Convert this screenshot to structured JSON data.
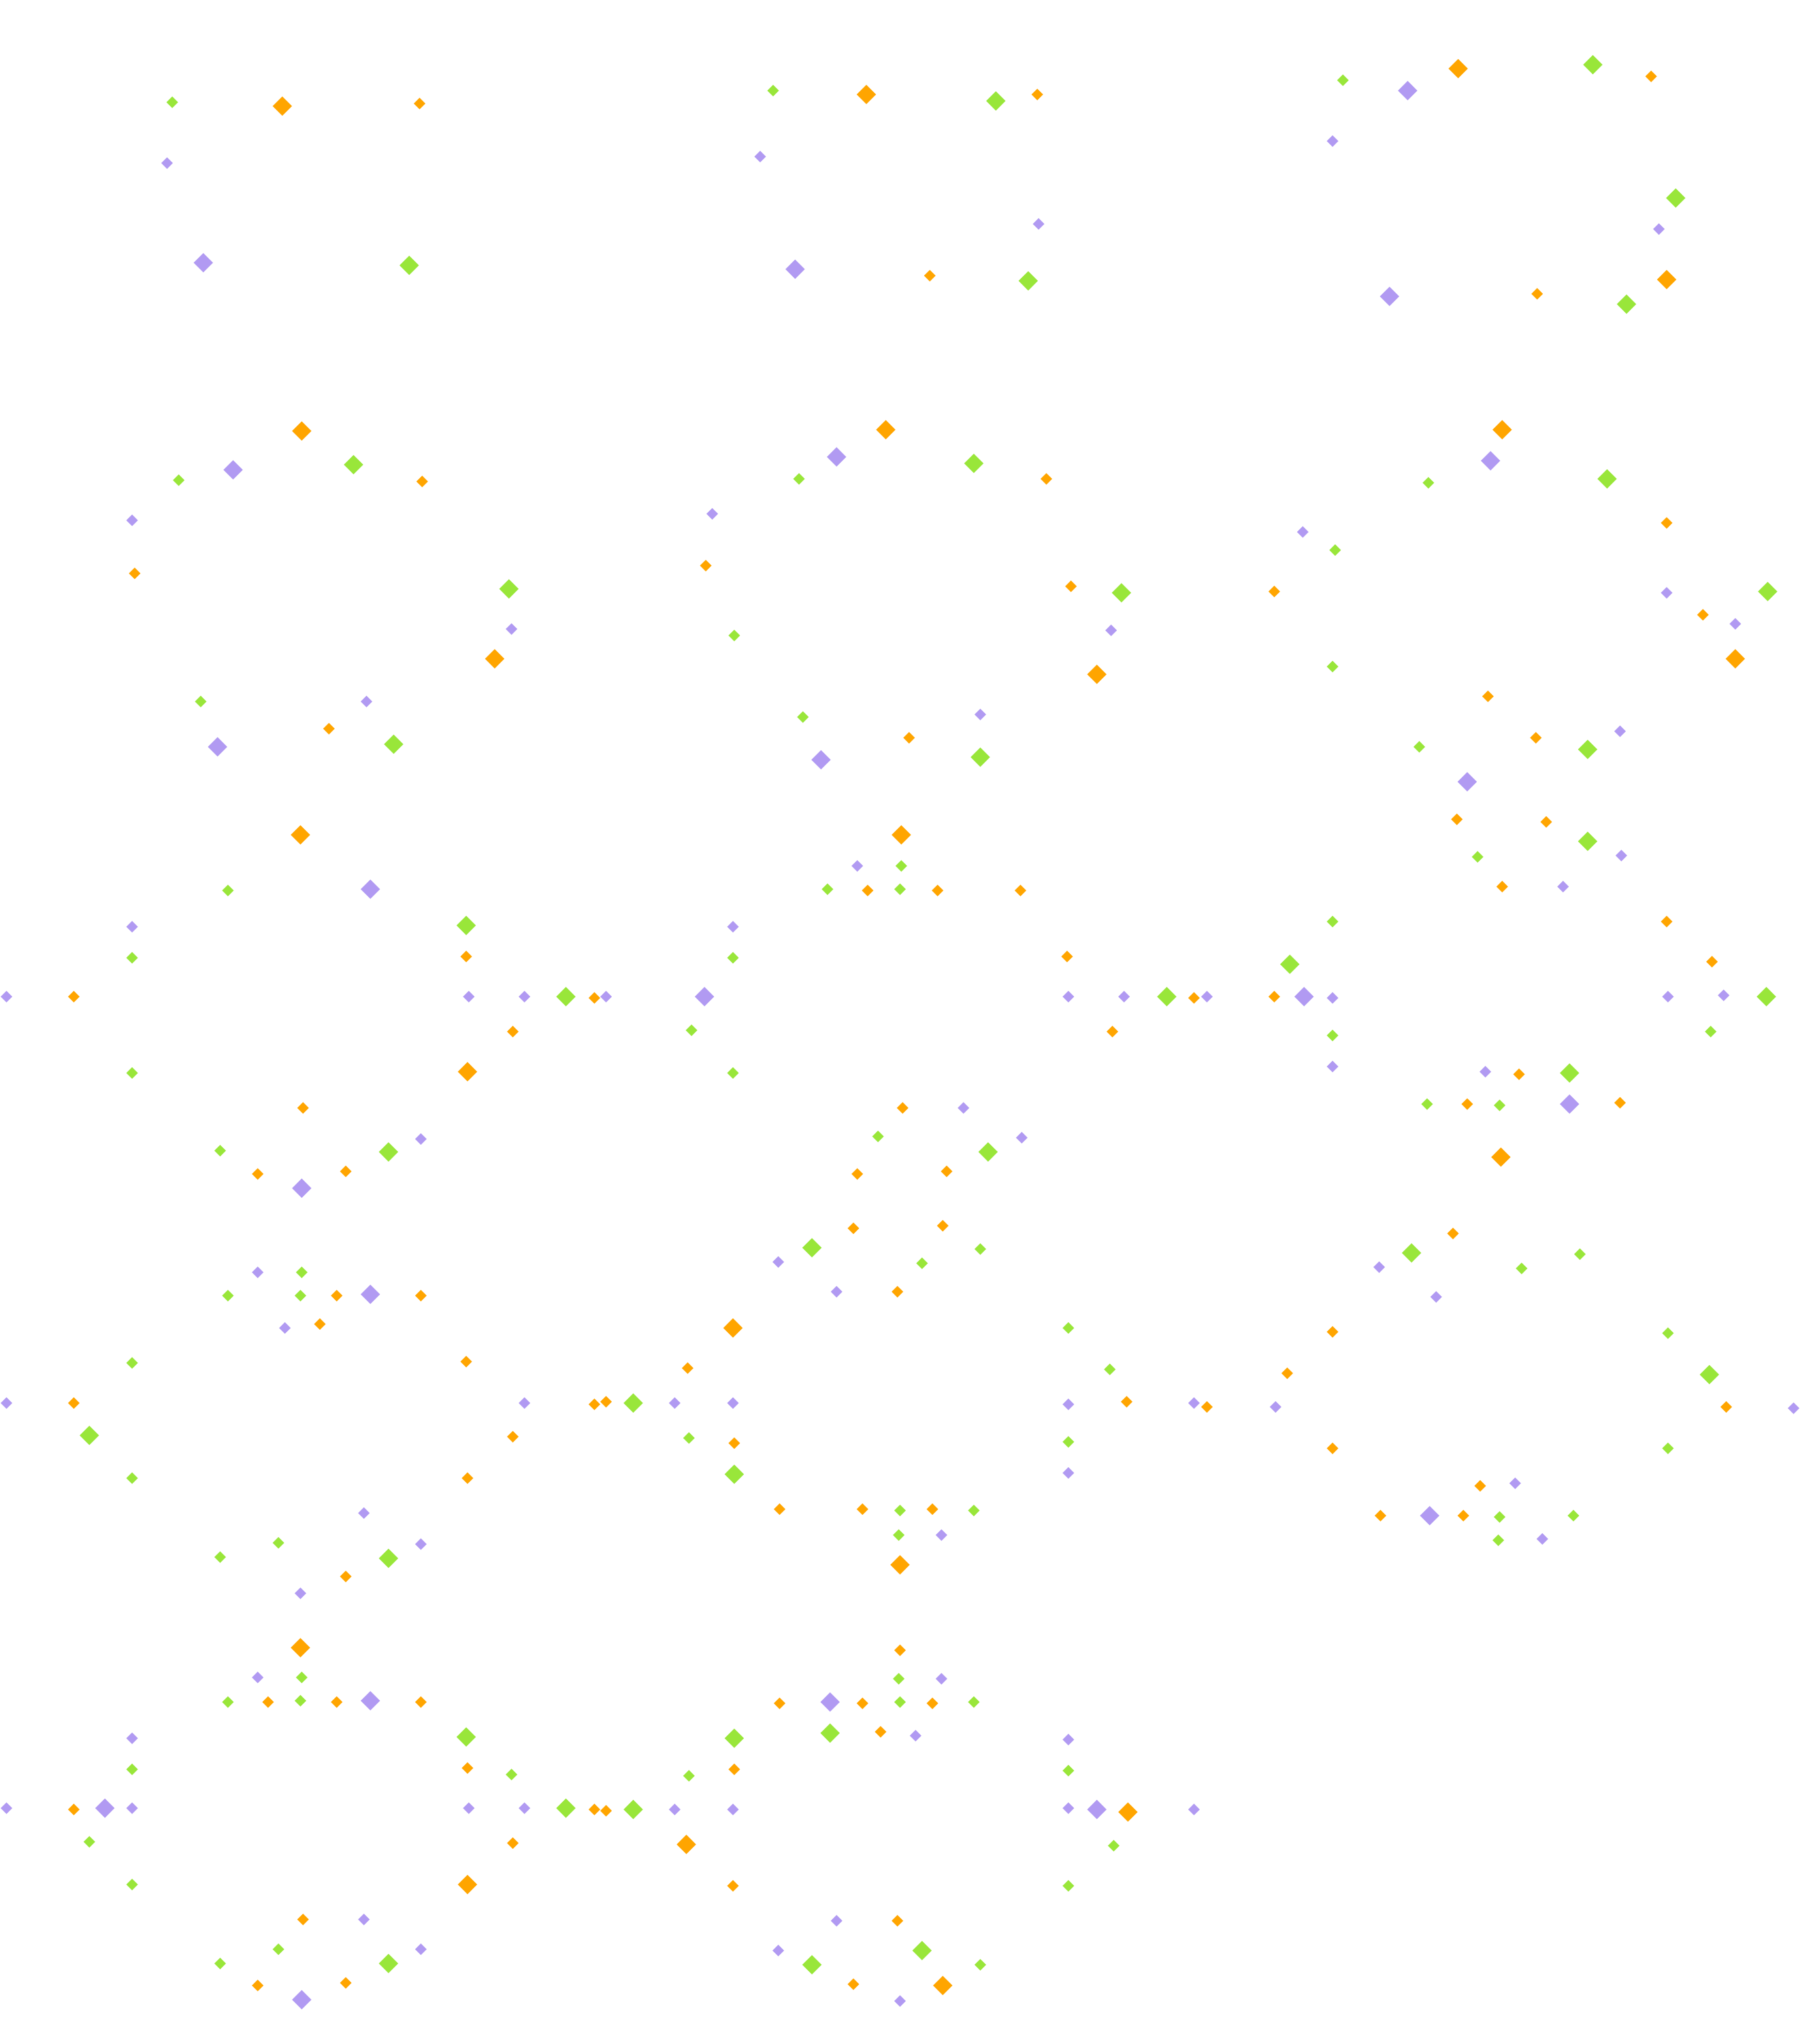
{
  "pattern": {
    "description_visible_text": "",
    "colors": {
      "orange": "#FFA500",
      "green": "#99E63A",
      "purple": "#B19AF2",
      "background": "#FFFFFF"
    },
    "motif": "diamond-sparkle",
    "groups": [
      {
        "name": "top-left-cluster"
      },
      {
        "name": "top-center-cluster"
      },
      {
        "name": "top-right-cluster"
      },
      {
        "name": "second-row-left-ring"
      },
      {
        "name": "second-row-center-ring"
      },
      {
        "name": "second-row-right-ring"
      },
      {
        "name": "middle-left-ring"
      },
      {
        "name": "middle-center-ring"
      },
      {
        "name": "middle-right-ring"
      },
      {
        "name": "lower-left-ring"
      },
      {
        "name": "lower-center-ring"
      },
      {
        "name": "bottom-left-ring"
      },
      {
        "name": "bottom-center-ring"
      }
    ]
  }
}
